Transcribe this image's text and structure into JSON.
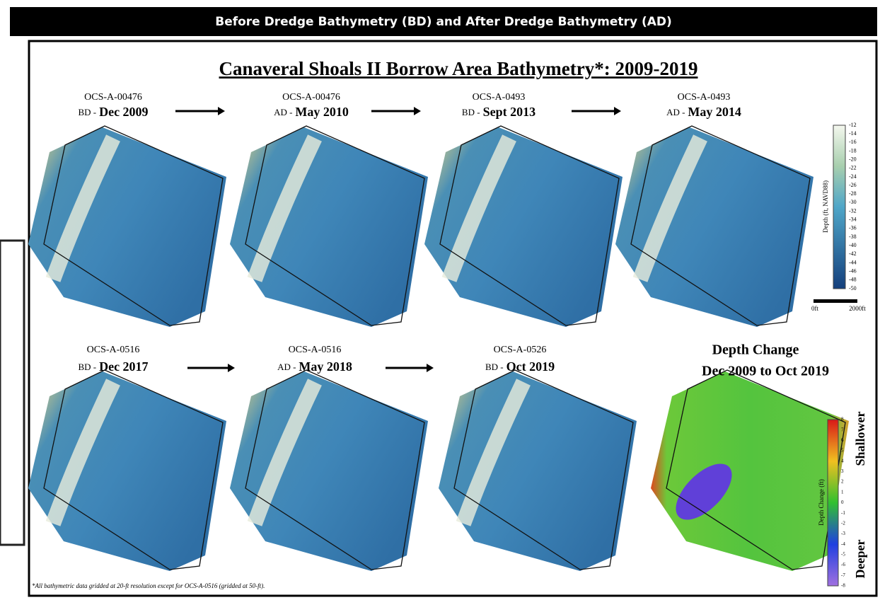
{
  "header": {
    "title": "Before Dredge Bathymetry (BD) and After Dredge Bathymetry (AD)"
  },
  "figure": {
    "title": "Canaveral Shoals II Borrow Area Bathymetry*: 2009-2019",
    "panels": [
      {
        "id": "OCS-A-00476",
        "phase": "BD -",
        "date": "Dec 2009"
      },
      {
        "id": "OCS-A-00476",
        "phase": "AD -",
        "date": "May 2010"
      },
      {
        "id": "OCS-A-0493",
        "phase": "BD -",
        "date": "Sept 2013"
      },
      {
        "id": "OCS-A-0493",
        "phase": "AD -",
        "date": "May 2014"
      },
      {
        "id": "OCS-A-0516",
        "phase": "BD -",
        "date": "Dec 2017"
      },
      {
        "id": "OCS-A-0516",
        "phase": "AD -",
        "date": "May 2018"
      },
      {
        "id": "OCS-A-0526",
        "phase": "BD -",
        "date": "Oct 2019"
      }
    ],
    "depth_legend": {
      "label": "Depth (ft, NAVD88)",
      "ticks": [
        -12,
        -14,
        -16,
        -18,
        -20,
        -22,
        -24,
        -26,
        -28,
        -30,
        -32,
        -34,
        -36,
        -38,
        -40,
        -42,
        -44,
        -46,
        -48,
        -50
      ]
    },
    "scale_bar": {
      "start": "0ft",
      "end": "2000ft"
    },
    "change_panel": {
      "title": "Depth Change",
      "subtitle": "Dec 2009 to Oct 2019"
    },
    "change_legend": {
      "label": "Depth Change (ft)",
      "ticks": [
        8,
        7,
        6,
        5,
        4,
        3,
        2,
        1,
        0,
        -1,
        -2,
        -3,
        -4,
        -5,
        -6,
        -7,
        -8
      ],
      "top": "Shallower",
      "bottom": "Deeper"
    },
    "footnote": "*All bathymetric data gridded at 20-ft resolution except for OCS-A-0516 (gridded at 50-ft)."
  }
}
